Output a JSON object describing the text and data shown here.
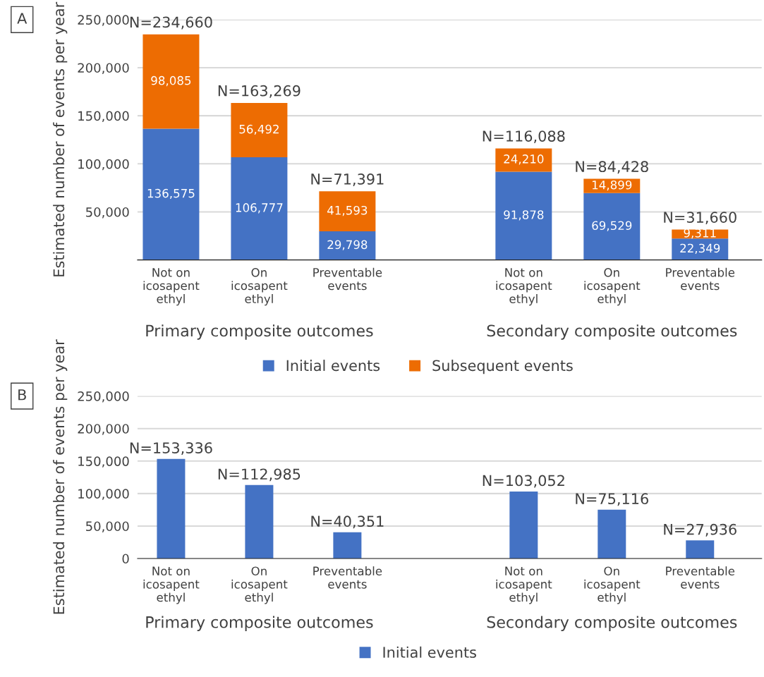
{
  "chart_data": [
    {
      "type": "bar",
      "stacked": true,
      "ylabel": "Estimated number of events per year",
      "categories": [
        "Not on\nicosapent\nethyl",
        "On\nicosapent\nethyl",
        "Preventable\nevents",
        null,
        "Not on\nicosapent\nethyl",
        "On\nicosapent\nethyl",
        "Preventable\nevents"
      ],
      "series": [
        {
          "name": "Initial events",
          "color": "#4472c4",
          "values": [
            136575,
            106777,
            29798,
            null,
            91878,
            69529,
            22349
          ],
          "value_labels": [
            "136,575",
            "106,777",
            "29,798",
            null,
            "91,878",
            "69,529",
            "22,349"
          ]
        },
        {
          "name": "Subsequent events",
          "color": "#ed6c02",
          "values": [
            98085,
            56492,
            41593,
            null,
            24210,
            14899,
            9311
          ],
          "value_labels": [
            "98,085",
            "56,492",
            "41,593",
            null,
            "24,210",
            "14,899",
            "9,311"
          ]
        }
      ],
      "totals": [
        "N=234,660",
        "N=163,269",
        "N=71,391",
        null,
        "N=116,088",
        "N=84,428",
        "N=31,660"
      ],
      "ylim": [
        0,
        250000
      ],
      "yticks": [
        {
          "value": 0,
          "label": null
        },
        {
          "value": 50000,
          "label": "50,000"
        },
        {
          "value": 100000,
          "label": "100,000"
        },
        {
          "value": 150000,
          "label": "150,000"
        },
        {
          "value": 200000,
          "label": "200,000"
        },
        {
          "value": 250000,
          "label": "250,000"
        }
      ],
      "grid": "y",
      "legend": "bottom",
      "annotations": [
        "A",
        "Primary composite outcomes",
        "Secondary composite outcomes"
      ]
    },
    {
      "type": "bar",
      "ylabel": "Estimated number of events per year",
      "categories": [
        "Not on\nicosapent\nethyl",
        "On\nicosapent\nethyl",
        "Preventable\nevents",
        null,
        "Not on\nicosapent\nethyl",
        "On\nicosapent\nethyl",
        "Preventable\nevents"
      ],
      "series": [
        {
          "name": "Initial events",
          "color": "#4472c4",
          "values": [
            153336,
            112985,
            40351,
            null,
            103052,
            75116,
            27936
          ],
          "value_labels": [
            "N=153,336",
            "N=112,985",
            "N=40,351",
            null,
            "N=103,052",
            "N=75,116",
            "N=27,936"
          ]
        }
      ],
      "ylim": [
        0,
        250000
      ],
      "yticks": [
        {
          "value": 0,
          "label": "0"
        },
        {
          "value": 50000,
          "label": "50,000"
        },
        {
          "value": 100000,
          "label": "100,000"
        },
        {
          "value": 150000,
          "label": "150,000"
        },
        {
          "value": 200000,
          "label": "200,000"
        },
        {
          "value": 250000,
          "label": "250,000"
        }
      ],
      "grid": "y",
      "legend": "bottom",
      "annotations": [
        "B",
        "Primary composite outcomes",
        "Secondary composite outcomes"
      ]
    }
  ]
}
